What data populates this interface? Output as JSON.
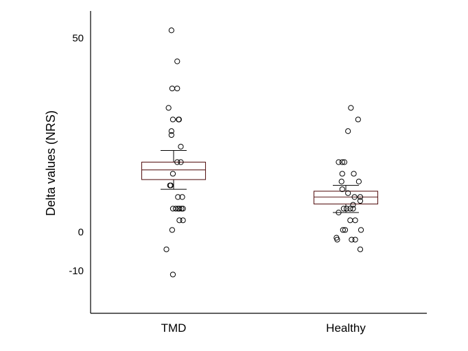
{
  "chart_data": {
    "type": "boxplot",
    "title": "",
    "xlabel": "",
    "ylabel": "Delta values (NRS)",
    "yticks": [
      50,
      0,
      -10
    ],
    "ytick_labels": [
      "50",
      "0",
      "-10"
    ],
    "ylim": [
      -21,
      57
    ],
    "grid": false,
    "legend": "none",
    "categories": [
      "TMD",
      "Healthy"
    ],
    "colors": {
      "box_edge": "#5a1a1a",
      "whisker": "#000000",
      "point": "#000000",
      "axis": "#000000"
    },
    "groups": [
      {
        "name": "TMD",
        "box": {
          "q1": 13.5,
          "median": 16,
          "q3": 18,
          "whisker_low": 11,
          "whisker_high": 21
        },
        "points": [
          [
            -0.03,
            52
          ],
          [
            0.05,
            44
          ],
          [
            -0.02,
            37
          ],
          [
            0.05,
            37
          ],
          [
            -0.07,
            32
          ],
          [
            -0.01,
            29
          ],
          [
            0.07,
            29
          ],
          [
            0.075,
            29
          ],
          [
            -0.03,
            26
          ],
          [
            -0.03,
            25
          ],
          [
            0.1,
            22
          ],
          [
            0.05,
            18
          ],
          [
            0.1,
            18
          ],
          [
            -0.01,
            15
          ],
          [
            -0.05,
            12
          ],
          [
            -0.04,
            12
          ],
          [
            0.06,
            9
          ],
          [
            0.12,
            9
          ],
          [
            -0.01,
            6
          ],
          [
            0.03,
            6
          ],
          [
            0.06,
            6
          ],
          [
            0.08,
            6
          ],
          [
            0.11,
            6
          ],
          [
            0.13,
            6
          ],
          [
            0.08,
            3
          ],
          [
            0.13,
            3
          ],
          [
            -0.02,
            0.5
          ],
          [
            -0.1,
            -4.5
          ],
          [
            -0.01,
            -11
          ]
        ]
      },
      {
        "name": "Healthy",
        "box": {
          "q1": 7.2,
          "median": 9,
          "q3": 10.5,
          "whisker_low": 5,
          "whisker_high": 12
        },
        "points": [
          [
            0.07,
            32
          ],
          [
            0.17,
            29
          ],
          [
            0.03,
            26
          ],
          [
            -0.1,
            18
          ],
          [
            -0.05,
            18
          ],
          [
            -0.02,
            18
          ],
          [
            -0.05,
            15
          ],
          [
            0.11,
            15
          ],
          [
            -0.06,
            13
          ],
          [
            0.18,
            13
          ],
          [
            -0.05,
            11
          ],
          [
            0.03,
            10
          ],
          [
            0.12,
            9
          ],
          [
            0.2,
            9
          ],
          [
            0.2,
            8
          ],
          [
            0.1,
            7
          ],
          [
            -0.03,
            6
          ],
          [
            0.01,
            6
          ],
          [
            0.06,
            6
          ],
          [
            0.1,
            6
          ],
          [
            -0.1,
            5
          ],
          [
            0.06,
            3
          ],
          [
            0.13,
            3
          ],
          [
            -0.04,
            0.5
          ],
          [
            -0.01,
            0.5
          ],
          [
            0.21,
            0.5
          ],
          [
            -0.13,
            -1.5
          ],
          [
            -0.12,
            -2
          ],
          [
            0.08,
            -2
          ],
          [
            0.13,
            -2
          ],
          [
            0.2,
            -4.5
          ]
        ]
      }
    ]
  }
}
